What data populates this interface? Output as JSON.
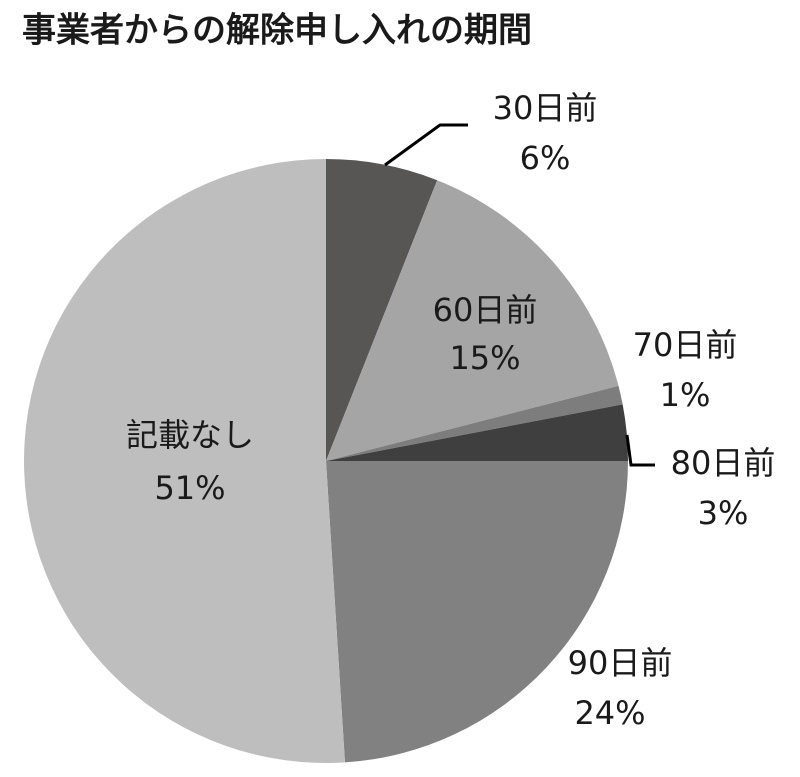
{
  "chart_data": {
    "type": "pie",
    "title": "事業者からの解除申し入れの期間",
    "categories": [
      "30日前",
      "60日前",
      "70日前",
      "80日前",
      "90日前",
      "記載なし"
    ],
    "values": [
      6,
      15,
      1,
      3,
      24,
      51
    ],
    "value_labels": [
      "6%",
      "15%",
      "1%",
      "3%",
      "24%",
      "51%"
    ],
    "colors": [
      "#575654",
      "#a5a5a5",
      "#7d7d7d",
      "#3f3f3f",
      "#818181",
      "#bebebe"
    ]
  }
}
